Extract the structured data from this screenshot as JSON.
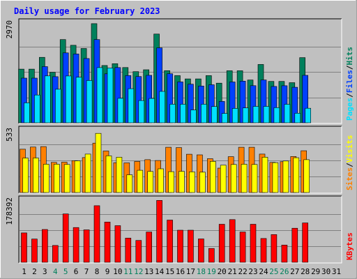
{
  "chart_data": {
    "type": "bar",
    "title": "Daily usage for February 2023",
    "categories": [
      "1",
      "2",
      "3",
      "4",
      "5",
      "6",
      "7",
      "8",
      "9",
      "10",
      "11",
      "12",
      "13",
      "14",
      "15",
      "16",
      "17",
      "18",
      "19",
      "20",
      "21",
      "22",
      "23",
      "24",
      "25",
      "26",
      "27",
      "28",
      "29",
      "30",
      "31"
    ],
    "weekend_days": [
      4,
      5,
      11,
      12,
      18,
      19,
      25,
      26
    ],
    "colors": {
      "background": "#c0c0c0",
      "title": "#0000ff",
      "hits": "#00805c",
      "files": "#0040ff",
      "pages": "#00e0ff",
      "visits": "#ffff00",
      "sites": "#ff8000",
      "kbytes": "#ff0000",
      "weekend_label": "#00805c",
      "weekday_label": "#000000"
    },
    "panels": [
      {
        "id": "hits",
        "max_label": "2970",
        "ylim": [
          0,
          2970
        ],
        "legend": [
          "Pages",
          "/",
          "Files",
          "/",
          "Hits"
        ],
        "series": [
          {
            "name": "Hits",
            "values": [
              1564,
              1564,
              1908,
              1473,
              2426,
              2260,
              2166,
              2891,
              1670,
              1724,
              1612,
              1492,
              1547,
              2587,
              1519,
              1375,
              1280,
              1280,
              1375,
              1155,
              1517,
              1517,
              1247,
              1700,
              1206,
              1206,
              1170,
              1899,
              0,
              0,
              0
            ]
          },
          {
            "name": "Files",
            "values": [
              1301,
              1301,
              1637,
              1344,
              2039,
              2005,
              1873,
              2427,
              1428,
              1612,
              1377,
              1349,
              1383,
              2185,
              1431,
              1193,
              1124,
              1072,
              1108,
              622,
              1190,
              1214,
              1083,
              1249,
              1059,
              1081,
              1036,
              1384,
              0,
              0,
              0
            ]
          },
          {
            "name": "Pages",
            "values": [
              581,
              810,
              1366,
              978,
              1364,
              1328,
              1233,
              1610,
              1597,
              715,
              994,
              648,
              710,
              915,
              542,
              542,
              374,
              542,
              474,
              273,
              419,
              434,
              479,
              479,
              441,
              539,
              278,
              424,
              0,
              0,
              0
            ]
          }
        ]
      },
      {
        "id": "visits",
        "max_label": "533",
        "ylim": [
          0,
          533
        ],
        "legend": [
          "Sites",
          "/",
          "Visits"
        ],
        "series": [
          {
            "name": "Sites",
            "values": [
              360,
              378,
              381,
              250,
              252,
              265,
              290,
              410,
              345,
              248,
              246,
              258,
              273,
              266,
              376,
              373,
              318,
              313,
              281,
              203,
              298,
              376,
              376,
              319,
              250,
              256,
              299,
              347,
              0,
              0,
              0
            ]
          },
          {
            "name": "Visits",
            "values": [
              286,
              287,
              235,
              235,
              233,
              263,
              319,
              491,
              305,
              293,
              147,
              185,
              175,
              197,
              173,
              176,
              172,
              169,
              259,
              227,
              233,
              235,
              233,
              294,
              248,
              262,
              289,
              273,
              0,
              0,
              0
            ]
          }
        ]
      },
      {
        "id": "kbytes",
        "max_label": "178392",
        "ylim": [
          0,
          178392
        ],
        "legend": [
          "KBytes"
        ],
        "series": [
          {
            "name": "KBytes",
            "values": [
              81546,
              64546,
              91227,
              46808,
              134286,
              96618,
              90135,
              157326,
              111897,
              101772,
              67218,
              60654,
              84159,
              171942,
              117270,
              89277,
              89277,
              64977,
              38388,
              105696,
              118665,
              84159,
              105696,
              66060,
              77016,
              47835,
              94581,
              109287,
              0,
              0,
              0
            ]
          }
        ]
      }
    ]
  }
}
